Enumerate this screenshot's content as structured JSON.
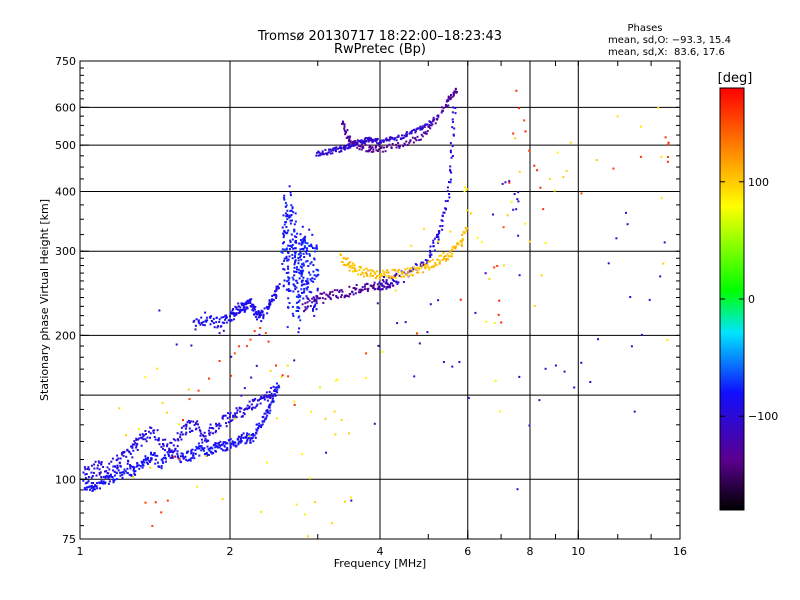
{
  "chart_data": {
    "type": "scatter",
    "title": "Tromsø 20130717 18:22:00–18:23:43",
    "subtitle": "RwPretec (Bp)",
    "xlabel": "Frequency [MHz]",
    "ylabel": "Stationary phase Virtual Height [km]",
    "x_scale": "log",
    "y_scale": "log",
    "xlim": [
      1,
      16
    ],
    "ylim": [
      75,
      750
    ],
    "x_ticks": [
      1,
      2,
      4,
      6,
      8,
      10,
      16
    ],
    "y_ticks": [
      75,
      100,
      200,
      300,
      400,
      500,
      600,
      750
    ],
    "grid": true,
    "stats": {
      "title": "Phases",
      "line_o": "mean, sd,O: −93.3, 15.4",
      "line_x": "mean, sd,X:  83.6, 17.6"
    },
    "colorbar": {
      "label": "[deg]",
      "min": -180,
      "max": 180,
      "ticks": [
        100,
        0,
        -100
      ]
    },
    "traces": [
      {
        "name": "",
        "phase": -85,
        "spread": 3,
        "n": 3,
        "x": [
          1.02,
          1.05,
          1.08,
          1.12,
          1.16,
          1.2,
          1.25,
          1.28,
          1.32,
          1.36,
          1.4,
          1.45,
          1.5,
          1.55,
          1.6,
          1.65,
          1.7,
          1.75,
          1.8,
          1.85,
          1.9,
          1.95,
          2.0,
          2.05,
          2.1,
          2.15,
          2.2,
          2.25,
          2.3,
          2.35,
          2.4,
          2.45,
          2.5
        ],
        "y": [
          97,
          97,
          97,
          99,
          101,
          103,
          105,
          104,
          107,
          110,
          112,
          108,
          112,
          113,
          111,
          112,
          113,
          117,
          114,
          116,
          118,
          117,
          119,
          119,
          121,
          122,
          121,
          125,
          130,
          135,
          140,
          148,
          158
        ]
      },
      {
        "name": "",
        "phase": -95,
        "spread": 4,
        "n": 3,
        "x": [
          1.02,
          1.06,
          1.1,
          1.14,
          1.18,
          1.22,
          1.26,
          1.3,
          1.34,
          1.4,
          1.46,
          1.52,
          1.58,
          1.64,
          1.7,
          1.76,
          1.82,
          1.9,
          1.98,
          2.06,
          2.14,
          2.22,
          2.3,
          2.38,
          2.45
        ],
        "y": [
          104,
          105,
          106,
          104,
          108,
          110,
          114,
          118,
          122,
          126,
          120,
          116,
          123,
          128,
          131,
          122,
          125,
          130,
          134,
          137,
          140,
          143,
          146,
          150,
          154
        ]
      },
      {
        "name": "",
        "phase": -90,
        "spread": 5,
        "n": 4,
        "x": [
          1.7,
          1.8,
          1.9,
          2.0,
          2.05,
          2.1,
          2.15,
          2.2,
          2.25,
          2.3,
          2.38,
          2.45,
          2.5
        ],
        "y": [
          210,
          216,
          212,
          218,
          224,
          230,
          228,
          235,
          222,
          218,
          228,
          240,
          252
        ]
      },
      {
        "name": "",
        "phase": -80,
        "spread": 45,
        "n": 5,
        "x": [
          2.55,
          2.58,
          2.6,
          2.62,
          2.65,
          2.68,
          2.7,
          2.72,
          2.75,
          2.78,
          2.8,
          2.82,
          2.85,
          2.9,
          2.95,
          3.0
        ],
        "y": [
          280,
          350,
          300,
          240,
          390,
          260,
          320,
          270,
          240,
          300,
          260,
          310,
          270,
          290,
          250,
          270
        ]
      },
      {
        "name": "",
        "phase": -130,
        "spread": 6,
        "n": 2,
        "x": [
          2.8,
          2.9,
          3.0,
          3.1,
          3.2,
          3.3,
          3.4,
          3.5,
          3.6,
          3.7,
          3.8,
          3.9,
          4.0,
          4.1,
          4.2,
          4.3
        ],
        "y": [
          230,
          236,
          238,
          240,
          242,
          244,
          246,
          248,
          250,
          251,
          252,
          253,
          254,
          256,
          258,
          262
        ]
      },
      {
        "name": "",
        "phase": -95,
        "spread": 8,
        "n": 2,
        "x": [
          4.0,
          4.2,
          4.4,
          4.6,
          4.8,
          5.0,
          5.1,
          5.2,
          5.3,
          5.4,
          5.5,
          5.55,
          5.6,
          5.65
        ],
        "y": [
          256,
          260,
          265,
          270,
          280,
          292,
          305,
          320,
          340,
          365,
          400,
          450,
          520,
          600
        ]
      },
      {
        "name": "",
        "phase": 105,
        "spread": 6,
        "n": 3,
        "x": [
          3.35,
          3.45,
          3.55,
          3.7,
          3.85,
          4.0,
          4.2,
          4.4,
          4.6,
          4.8,
          5.0,
          5.2,
          5.4,
          5.6,
          5.8,
          5.95
        ],
        "y": [
          290,
          282,
          276,
          272,
          270,
          268,
          268,
          270,
          272,
          276,
          280,
          286,
          292,
          300,
          312,
          330
        ]
      },
      {
        "name": "",
        "phase": -105,
        "spread": 6,
        "n": 3,
        "x": [
          3.0,
          3.1,
          3.2,
          3.3,
          3.4,
          3.5,
          3.6,
          3.7,
          3.8,
          3.9,
          4.0,
          4.2,
          4.4,
          4.6,
          4.8,
          5.0,
          5.2
        ],
        "y": [
          478,
          482,
          486,
          490,
          495,
          500,
          505,
          510,
          515,
          512,
          508,
          515,
          520,
          530,
          540,
          555,
          570
        ]
      },
      {
        "name": "",
        "phase": -130,
        "spread": 8,
        "n": 2,
        "x": [
          3.35,
          3.4,
          3.45,
          3.5,
          3.6,
          3.7,
          3.8,
          3.9,
          4.0,
          4.2,
          4.4,
          4.6,
          4.8,
          5.0,
          5.2,
          5.4,
          5.5,
          5.6,
          5.7
        ],
        "y": [
          560,
          540,
          520,
          510,
          500,
          495,
          492,
          490,
          490,
          494,
          500,
          508,
          520,
          540,
          570,
          600,
          620,
          640,
          650
        ]
      },
      {
        "name": "",
        "phase": 90,
        "spread": 40,
        "n": 1,
        "x": [
          1.2,
          1.35,
          1.5,
          1.8,
          2.3,
          2.55,
          2.8,
          2.9,
          3.2,
          3.3,
          3.5,
          4.6,
          5.9,
          6.0,
          6.5,
          7.0,
          7.5,
          8.2,
          9.0,
          9.6,
          14.5,
          15.0
        ],
        "y": [
          118,
          128,
          145,
          92,
          100,
          175,
          90,
          120,
          118,
          125,
          130,
          280,
          380,
          370,
          250,
          160,
          500,
          260,
          440,
          470,
          600,
          200
        ]
      },
      {
        "name": "",
        "phase": -110,
        "spread": 25,
        "n": 1,
        "x": [
          1.45,
          1.9,
          2.1,
          2.3,
          3.9,
          4.0,
          4.7,
          5.2,
          6.0,
          7.0,
          7.5,
          7.55,
          7.6,
          9.0,
          10.5,
          12.5,
          13.0,
          15.0
        ],
        "y": [
          210,
          220,
          140,
          200,
          76,
          260,
          172,
          220,
          130,
          420,
          380,
          400,
          100,
          180,
          145,
          380,
          130,
          330
        ]
      },
      {
        "name": "",
        "phase": 160,
        "spread": 15,
        "n": 1,
        "x": [
          1.35,
          1.5,
          1.65,
          2.0,
          2.2,
          2.4,
          2.7,
          6.8,
          7.0,
          7.5,
          8.0,
          8.5,
          15.0,
          15.2
        ],
        "y": [
          95,
          82,
          160,
          175,
          200,
          190,
          140,
          280,
          220,
          640,
          500,
          360,
          520,
          470
        ]
      }
    ]
  }
}
